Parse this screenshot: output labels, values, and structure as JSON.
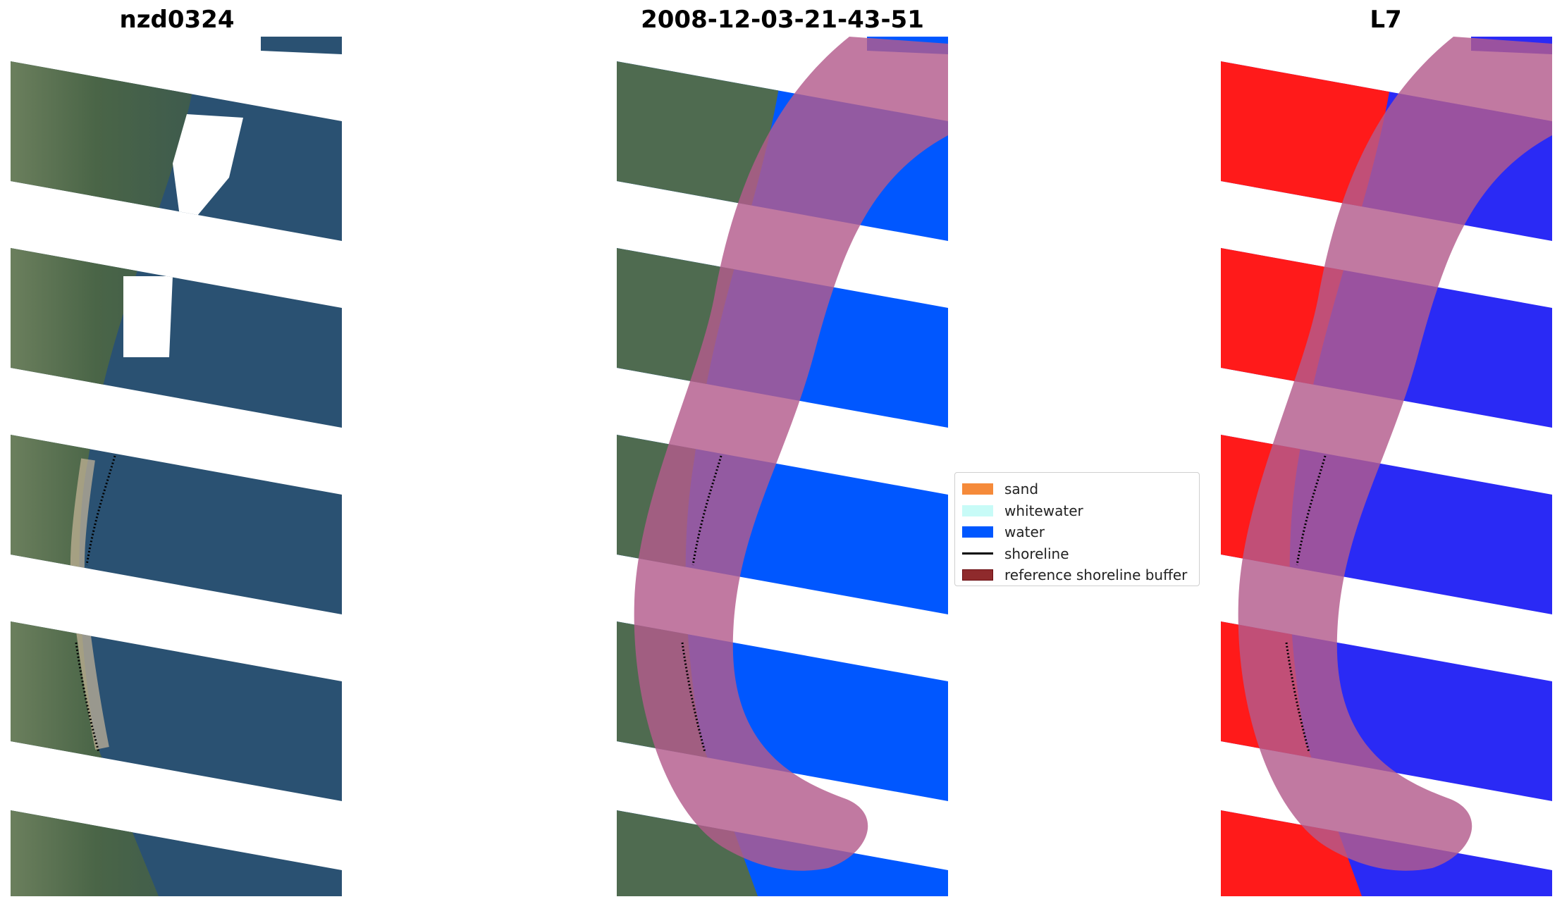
{
  "panels": {
    "left_title": "nzd0324",
    "middle_title": "2008-12-03-21-43-51",
    "right_title": "L7"
  },
  "legend": {
    "items": [
      {
        "label": "sand",
        "type": "patch",
        "color": "#f58a3a"
      },
      {
        "label": "whitewater",
        "type": "patch",
        "color": "#c8fbf7"
      },
      {
        "label": "water",
        "type": "patch",
        "color": "#0057ff"
      },
      {
        "label": "shoreline",
        "type": "line",
        "color": "#000000"
      },
      {
        "label": "reference shoreline buffer",
        "type": "patch",
        "color": "#8f2a2c"
      }
    ]
  },
  "colors": {
    "land_rgb": "#4f6a4c",
    "water_rgb": "#2c5577",
    "class_water": "#0057ff",
    "buffer_overlay": "#b35b8c",
    "index_land": "#ff1a1a",
    "index_water": "#2a2af5"
  }
}
